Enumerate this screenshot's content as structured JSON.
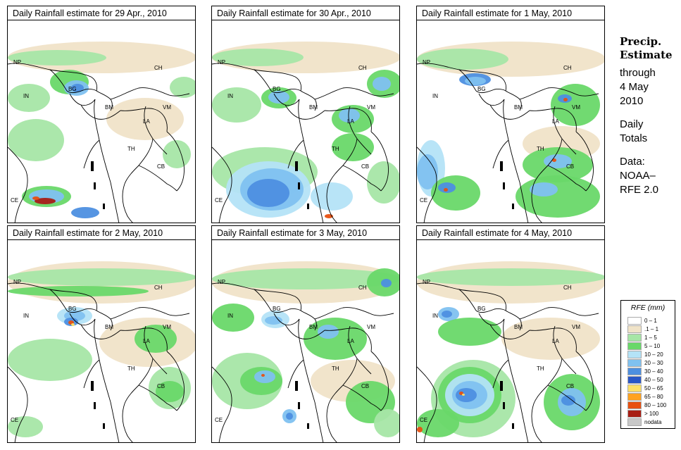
{
  "panels": [
    {
      "title": "Daily Rainfall estimate for  29 Apr., 2010"
    },
    {
      "title": "Daily Rainfall estimate for  30 Apr., 2010"
    },
    {
      "title": "Daily Rainfall estimate for  1 May, 2010"
    },
    {
      "title": "Daily Rainfall estimate for  2 May, 2010"
    },
    {
      "title": "Daily Rainfall estimate for  3 May, 2010"
    },
    {
      "title": "Daily Rainfall estimate for  4 May, 2010"
    }
  ],
  "country_labels": {
    "np": "NP",
    "ch": "CH",
    "in": "IN",
    "bg": "BG",
    "bm": "BM",
    "vm": "VM",
    "la": "LA",
    "th": "TH",
    "cb": "CB",
    "ce": "CE"
  },
  "side": {
    "heading1": "Precip.",
    "heading2": "Estimate",
    "line1": "through",
    "line2": "4 May",
    "line3": "2010",
    "line4": "Daily",
    "line5": "Totals",
    "line6": "Data:",
    "line7": "NOAA–",
    "line8": "RFE 2.0"
  },
  "legend": {
    "title": "RFE (mm)",
    "items": [
      {
        "label": "0 – 1",
        "color": "#ffffff"
      },
      {
        "label": ".1 – 1",
        "color": "#f0e3c8"
      },
      {
        "label": "1 – 5",
        "color": "#a6e6a6"
      },
      {
        "label": "5 – 10",
        "color": "#69d869"
      },
      {
        "label": "10 – 20",
        "color": "#b4e3f7"
      },
      {
        "label": "20 – 30",
        "color": "#7fc1f0"
      },
      {
        "label": "30 – 40",
        "color": "#4d8fe0"
      },
      {
        "label": "40 – 50",
        "color": "#2a56c6"
      },
      {
        "label": "50 – 65",
        "color": "#ffe066"
      },
      {
        "label": "65 – 80",
        "color": "#ffa21f"
      },
      {
        "label": "80 – 100",
        "color": "#e85010"
      },
      {
        "label": "> 100",
        "color": "#a81e14"
      },
      {
        "label": "nodata",
        "color": "#c8c8c8"
      }
    ]
  }
}
